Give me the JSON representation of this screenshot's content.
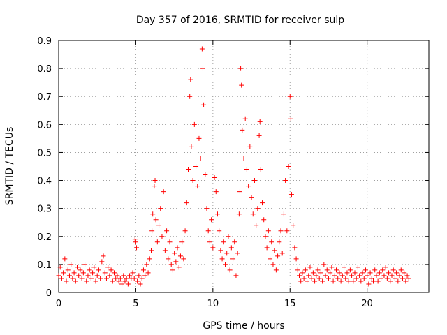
{
  "chart_data": {
    "type": "scatter",
    "title": "Day 357 of 2016, SRMTID for receiver sulp",
    "xlabel": "GPS time / hours",
    "ylabel": "SRMTID / TECUs",
    "xlim": [
      0,
      24
    ],
    "ylim": [
      0,
      0.9
    ],
    "xticks": [
      0,
      5,
      10,
      15,
      20
    ],
    "yticks": [
      0,
      0.1,
      0.2,
      0.3,
      0.4,
      0.5,
      0.6,
      0.7,
      0.8,
      0.9
    ],
    "xtick_labels": [
      "0",
      "5",
      "10",
      "15",
      "20"
    ],
    "ytick_labels": [
      "0",
      "0.1",
      "0.2",
      "0.3",
      "0.4",
      "0.5",
      "0.6",
      "0.7",
      "0.8",
      "0.9"
    ],
    "grid": true,
    "marker": "plus",
    "color": "#ff0000",
    "series": [
      {
        "name": "SRMTID",
        "points": [
          [
            0.0,
            0.06
          ],
          [
            0.1,
            0.09
          ],
          [
            0.2,
            0.05
          ],
          [
            0.3,
            0.07
          ],
          [
            0.4,
            0.12
          ],
          [
            0.5,
            0.04
          ],
          [
            0.6,
            0.08
          ],
          [
            0.7,
            0.06
          ],
          [
            0.8,
            0.1
          ],
          [
            0.9,
            0.05
          ],
          [
            1.0,
            0.07
          ],
          [
            1.1,
            0.04
          ],
          [
            1.2,
            0.09
          ],
          [
            1.3,
            0.06
          ],
          [
            1.4,
            0.08
          ],
          [
            1.5,
            0.05
          ],
          [
            1.6,
            0.07
          ],
          [
            1.7,
            0.1
          ],
          [
            1.8,
            0.04
          ],
          [
            1.9,
            0.06
          ],
          [
            2.0,
            0.08
          ],
          [
            2.1,
            0.05
          ],
          [
            2.2,
            0.07
          ],
          [
            2.3,
            0.09
          ],
          [
            2.4,
            0.04
          ],
          [
            2.5,
            0.06
          ],
          [
            2.6,
            0.08
          ],
          [
            2.7,
            0.05
          ],
          [
            2.8,
            0.11
          ],
          [
            2.9,
            0.13
          ],
          [
            3.0,
            0.07
          ],
          [
            3.1,
            0.05
          ],
          [
            3.2,
            0.09
          ],
          [
            3.3,
            0.06
          ],
          [
            3.4,
            0.08
          ],
          [
            3.5,
            0.04
          ],
          [
            3.6,
            0.07
          ],
          [
            3.7,
            0.05
          ],
          [
            3.8,
            0.06
          ],
          [
            3.9,
            0.04
          ],
          [
            4.0,
            0.05
          ],
          [
            4.1,
            0.03
          ],
          [
            4.2,
            0.06
          ],
          [
            4.3,
            0.04
          ],
          [
            4.4,
            0.05
          ],
          [
            4.5,
            0.03
          ],
          [
            4.6,
            0.06
          ],
          [
            4.7,
            0.05
          ],
          [
            4.8,
            0.07
          ],
          [
            4.9,
            0.05
          ],
          [
            4.95,
            0.19
          ],
          [
            5.0,
            0.18
          ],
          [
            5.05,
            0.16
          ],
          [
            5.1,
            0.04
          ],
          [
            5.2,
            0.06
          ],
          [
            5.3,
            0.03
          ],
          [
            5.4,
            0.05
          ],
          [
            5.5,
            0.08
          ],
          [
            5.6,
            0.06
          ],
          [
            5.7,
            0.1
          ],
          [
            5.8,
            0.07
          ],
          [
            5.9,
            0.12
          ],
          [
            6.0,
            0.15
          ],
          [
            6.05,
            0.22
          ],
          [
            6.1,
            0.28
          ],
          [
            6.2,
            0.38
          ],
          [
            6.25,
            0.4
          ],
          [
            6.3,
            0.26
          ],
          [
            6.4,
            0.18
          ],
          [
            6.5,
            0.24
          ],
          [
            6.6,
            0.3
          ],
          [
            6.7,
            0.2
          ],
          [
            6.8,
            0.36
          ],
          [
            6.9,
            0.15
          ],
          [
            7.0,
            0.22
          ],
          [
            7.1,
            0.12
          ],
          [
            7.2,
            0.18
          ],
          [
            7.3,
            0.1
          ],
          [
            7.4,
            0.08
          ],
          [
            7.5,
            0.14
          ],
          [
            7.6,
            0.11
          ],
          [
            7.7,
            0.16
          ],
          [
            7.8,
            0.09
          ],
          [
            7.9,
            0.13
          ],
          [
            8.0,
            0.18
          ],
          [
            8.1,
            0.12
          ],
          [
            8.2,
            0.22
          ],
          [
            8.3,
            0.32
          ],
          [
            8.4,
            0.44
          ],
          [
            8.5,
            0.7
          ],
          [
            8.55,
            0.76
          ],
          [
            8.6,
            0.52
          ],
          [
            8.7,
            0.4
          ],
          [
            8.8,
            0.6
          ],
          [
            8.9,
            0.45
          ],
          [
            9.0,
            0.38
          ],
          [
            9.1,
            0.55
          ],
          [
            9.2,
            0.48
          ],
          [
            9.3,
            0.87
          ],
          [
            9.35,
            0.8
          ],
          [
            9.4,
            0.67
          ],
          [
            9.5,
            0.42
          ],
          [
            9.6,
            0.3
          ],
          [
            9.7,
            0.22
          ],
          [
            9.8,
            0.18
          ],
          [
            9.9,
            0.26
          ],
          [
            10.0,
            0.16
          ],
          [
            10.1,
            0.41
          ],
          [
            10.2,
            0.36
          ],
          [
            10.3,
            0.28
          ],
          [
            10.4,
            0.22
          ],
          [
            10.5,
            0.15
          ],
          [
            10.6,
            0.12
          ],
          [
            10.7,
            0.18
          ],
          [
            10.8,
            0.1
          ],
          [
            10.9,
            0.14
          ],
          [
            11.0,
            0.2
          ],
          [
            11.1,
            0.08
          ],
          [
            11.2,
            0.16
          ],
          [
            11.3,
            0.12
          ],
          [
            11.4,
            0.18
          ],
          [
            11.5,
            0.06
          ],
          [
            11.6,
            0.14
          ],
          [
            11.7,
            0.28
          ],
          [
            11.75,
            0.36
          ],
          [
            11.8,
            0.8
          ],
          [
            11.85,
            0.74
          ],
          [
            11.9,
            0.58
          ],
          [
            12.0,
            0.48
          ],
          [
            12.1,
            0.62
          ],
          [
            12.2,
            0.44
          ],
          [
            12.3,
            0.38
          ],
          [
            12.4,
            0.52
          ],
          [
            12.5,
            0.34
          ],
          [
            12.6,
            0.28
          ],
          [
            12.7,
            0.4
          ],
          [
            12.8,
            0.24
          ],
          [
            12.9,
            0.3
          ],
          [
            13.0,
            0.56
          ],
          [
            13.05,
            0.61
          ],
          [
            13.1,
            0.44
          ],
          [
            13.2,
            0.32
          ],
          [
            13.3,
            0.26
          ],
          [
            13.4,
            0.2
          ],
          [
            13.5,
            0.16
          ],
          [
            13.6,
            0.22
          ],
          [
            13.7,
            0.12
          ],
          [
            13.8,
            0.18
          ],
          [
            13.9,
            0.1
          ],
          [
            14.0,
            0.15
          ],
          [
            14.1,
            0.08
          ],
          [
            14.2,
            0.13
          ],
          [
            14.3,
            0.18
          ],
          [
            14.4,
            0.22
          ],
          [
            14.5,
            0.14
          ],
          [
            14.6,
            0.28
          ],
          [
            14.7,
            0.4
          ],
          [
            14.8,
            0.22
          ],
          [
            14.9,
            0.45
          ],
          [
            15.0,
            0.7
          ],
          [
            15.05,
            0.62
          ],
          [
            15.1,
            0.35
          ],
          [
            15.2,
            0.24
          ],
          [
            15.3,
            0.16
          ],
          [
            15.4,
            0.12
          ],
          [
            15.5,
            0.08
          ],
          [
            15.6,
            0.06
          ],
          [
            15.7,
            0.04
          ],
          [
            15.8,
            0.07
          ],
          [
            15.9,
            0.05
          ],
          [
            16.0,
            0.08
          ],
          [
            16.1,
            0.04
          ],
          [
            16.2,
            0.06
          ],
          [
            16.3,
            0.09
          ],
          [
            16.4,
            0.05
          ],
          [
            16.5,
            0.07
          ],
          [
            16.6,
            0.04
          ],
          [
            16.7,
            0.06
          ],
          [
            16.8,
            0.08
          ],
          [
            16.9,
            0.05
          ],
          [
            17.0,
            0.07
          ],
          [
            17.1,
            0.04
          ],
          [
            17.2,
            0.1
          ],
          [
            17.3,
            0.06
          ],
          [
            17.4,
            0.08
          ],
          [
            17.5,
            0.05
          ],
          [
            17.6,
            0.07
          ],
          [
            17.7,
            0.09
          ],
          [
            17.8,
            0.04
          ],
          [
            17.9,
            0.06
          ],
          [
            18.0,
            0.08
          ],
          [
            18.1,
            0.05
          ],
          [
            18.2,
            0.07
          ],
          [
            18.3,
            0.04
          ],
          [
            18.4,
            0.06
          ],
          [
            18.5,
            0.09
          ],
          [
            18.6,
            0.05
          ],
          [
            18.7,
            0.07
          ],
          [
            18.8,
            0.04
          ],
          [
            18.9,
            0.08
          ],
          [
            19.0,
            0.06
          ],
          [
            19.1,
            0.04
          ],
          [
            19.2,
            0.07
          ],
          [
            19.3,
            0.05
          ],
          [
            19.4,
            0.09
          ],
          [
            19.5,
            0.06
          ],
          [
            19.6,
            0.04
          ],
          [
            19.7,
            0.07
          ],
          [
            19.8,
            0.05
          ],
          [
            19.9,
            0.08
          ],
          [
            20.0,
            0.06
          ],
          [
            20.1,
            0.03
          ],
          [
            20.2,
            0.07
          ],
          [
            20.3,
            0.05
          ],
          [
            20.4,
            0.04
          ],
          [
            20.5,
            0.08
          ],
          [
            20.6,
            0.06
          ],
          [
            20.7,
            0.04
          ],
          [
            20.8,
            0.07
          ],
          [
            20.9,
            0.05
          ],
          [
            21.0,
            0.08
          ],
          [
            21.1,
            0.06
          ],
          [
            21.2,
            0.09
          ],
          [
            21.3,
            0.05
          ],
          [
            21.4,
            0.07
          ],
          [
            21.5,
            0.04
          ],
          [
            21.6,
            0.06
          ],
          [
            21.7,
            0.08
          ],
          [
            21.8,
            0.05
          ],
          [
            21.9,
            0.07
          ],
          [
            22.0,
            0.04
          ],
          [
            22.1,
            0.06
          ],
          [
            22.2,
            0.08
          ],
          [
            22.3,
            0.05
          ],
          [
            22.4,
            0.07
          ],
          [
            22.5,
            0.04
          ],
          [
            22.6,
            0.06
          ],
          [
            22.7,
            0.05
          ]
        ]
      }
    ]
  }
}
